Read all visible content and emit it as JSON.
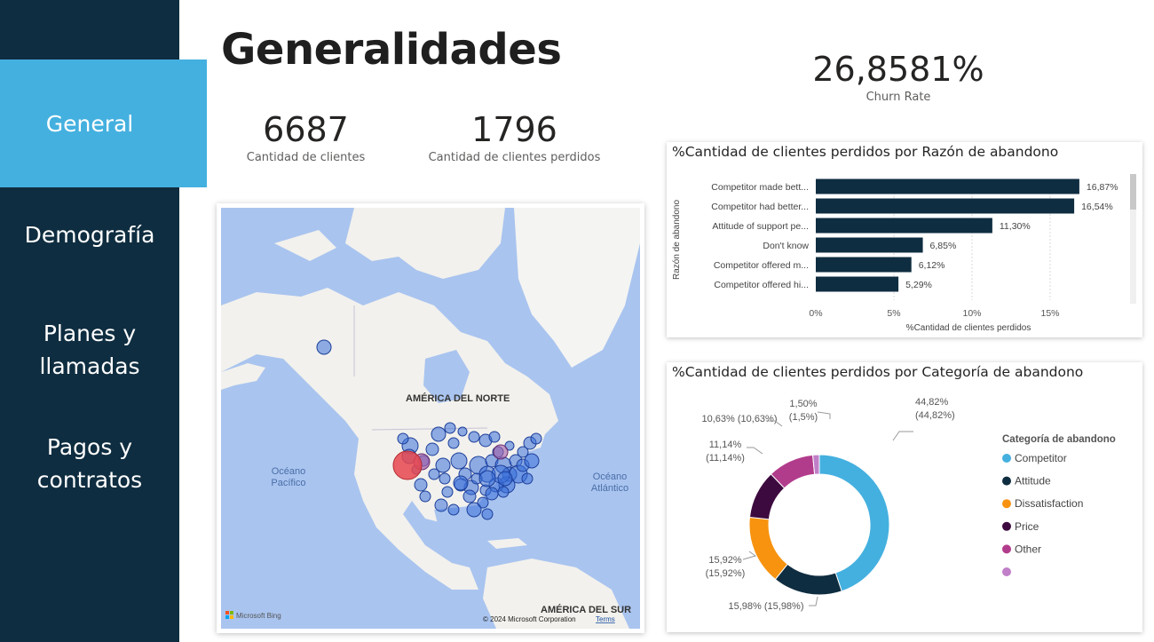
{
  "sidebar": {
    "items": [
      {
        "label": "General",
        "active": true
      },
      {
        "label": "Demografía",
        "active": false
      },
      {
        "label": "Planes y\nllamadas",
        "active": false
      },
      {
        "label": "Pagos y\ncontratos",
        "active": false
      }
    ],
    "colors": {
      "background": "#0f2d40",
      "active": "#44b0df"
    }
  },
  "header": {
    "title": "Generalidades"
  },
  "kpis": {
    "customers": {
      "value": "6687",
      "label": "Cantidad de clientes"
    },
    "lost_customers": {
      "value": "1796",
      "label": "Cantidad de clientes perdidos"
    },
    "churn_rate": {
      "value": "26,8581%",
      "label": "Churn Rate"
    }
  },
  "map": {
    "labels": {
      "north_america": "AMÉRICA DEL NORTE",
      "south_america": "AMÉRICA DEL SUR",
      "pacific": "Océano\nPacífico",
      "atlantic": "Océano\nAtlántico"
    },
    "attribution": {
      "logo": "Microsoft Bing",
      "copyright": "© 2024 Microsoft Corporation",
      "terms": "Terms"
    },
    "colors": {
      "ocean": "#a9c4ef",
      "land": "#f2f1ed",
      "bubble": "#3b6fd8",
      "highlight": "#e8474d"
    }
  },
  "chart_data": [
    {
      "type": "bar",
      "orientation": "horizontal",
      "title": "%Cantidad de clientes perdidos por Razón de abandono",
      "xlabel": "%Cantidad de clientes perdidos",
      "ylabel": "Razón de abandono",
      "categories": [
        "Competitor made bett...",
        "Competitor had better...",
        "Attitude of support pe...",
        "Don't know",
        "Competitor offered m...",
        "Competitor offered hi..."
      ],
      "values": [
        16.87,
        16.54,
        11.3,
        6.85,
        6.12,
        5.29
      ],
      "value_labels": [
        "16,87%",
        "16,54%",
        "11,30%",
        "6,85%",
        "6,12%",
        "5,29%"
      ],
      "x_ticks": [
        "0%",
        "5%",
        "10%",
        "15%"
      ],
      "xlim": [
        0,
        19
      ],
      "color": "#0f2d40"
    },
    {
      "type": "pie",
      "variant": "donut",
      "title": "%Cantidad de clientes perdidos por Categoría de abandono",
      "legend_title": "Categoría de abandono",
      "legend_position": "right",
      "slices": [
        {
          "name": "Competitor",
          "value": 44.82,
          "label": "44,82%\n(44,82%)",
          "color": "#44b0df"
        },
        {
          "name": "Attitude",
          "value": 15.98,
          "label": "15,98% (15,98%)",
          "color": "#0f2d40"
        },
        {
          "name": "Dissatisfaction",
          "value": 15.92,
          "label": "15,92%\n(15,92%)",
          "color": "#f7930f"
        },
        {
          "name": "Price",
          "value": 11.14,
          "label": "11,14%\n(11,14%)",
          "color": "#3d0a3f"
        },
        {
          "name": "Other",
          "value": 10.63,
          "label": "10,63% (10,63%)",
          "color": "#b23c8c"
        },
        {
          "name": "",
          "value": 1.5,
          "label": "1,50%\n(1,5%)",
          "color": "#c07fc8"
        }
      ]
    }
  ]
}
